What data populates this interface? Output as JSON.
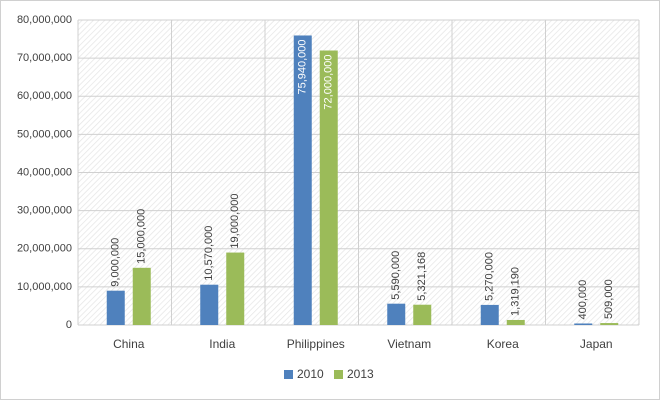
{
  "chart_data": {
    "type": "bar",
    "categories": [
      "China",
      "India",
      "Philippines",
      "Vietnam",
      "Korea",
      "Japan"
    ],
    "series": [
      {
        "name": "2010",
        "color": "#4f81bd",
        "values": [
          9000000,
          10570000,
          75940000,
          5590000,
          5270000,
          400000
        ],
        "value_labels": [
          "9,000,000",
          "10,570,000",
          "75,940,000",
          "5,590,000",
          "5,270,000",
          "400,000"
        ]
      },
      {
        "name": "2013",
        "color": "#9bbb59",
        "values": [
          15000000,
          19000000,
          72000000,
          5321168,
          1319190,
          509000
        ],
        "value_labels": [
          "15,000,000",
          "19,000,000",
          "72,000,000",
          "5,321,168",
          "1,319,190",
          "509,000"
        ]
      }
    ],
    "ylim": [
      0,
      80000000
    ],
    "yticks": [
      0,
      {
        "value": 10000000,
        "label": "10,000,000"
      },
      {
        "value": 20000000,
        "label": "20,000,000"
      },
      {
        "value": 30000000,
        "label": "30,000,000"
      },
      {
        "value": 40000000,
        "label": "40,000,000"
      },
      {
        "value": 50000000,
        "label": "50,000,000"
      },
      {
        "value": 60000000,
        "label": "60,000,000"
      },
      {
        "value": 70000000,
        "label": "70,000,000"
      },
      {
        "value": 80000000,
        "label": "80,000,000"
      }
    ],
    "grid": true,
    "legend": "bottom"
  }
}
